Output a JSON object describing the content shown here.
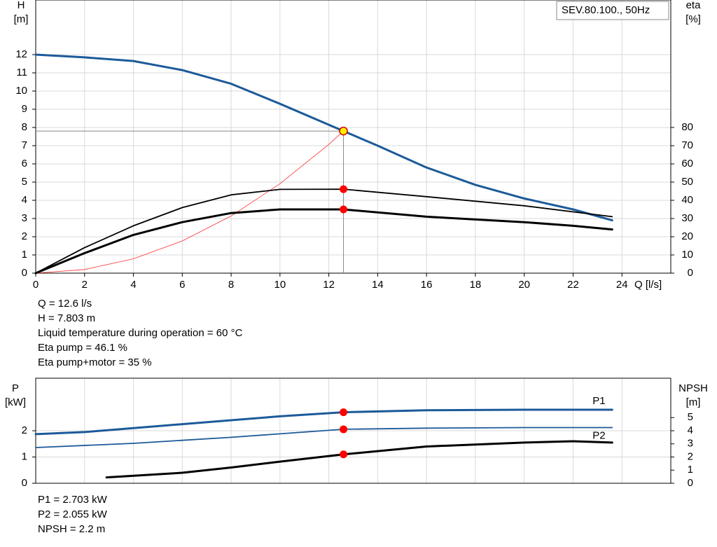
{
  "chart_data": [
    {
      "type": "line",
      "tag": "SEV.80.100., 50Hz",
      "ylabel": [
        "H",
        "[m]"
      ],
      "y2label": [
        "eta",
        "[%]"
      ],
      "xlabel": "Q [l/s]",
      "xlim": [
        0,
        26
      ],
      "xticks": [
        0,
        2,
        4,
        6,
        8,
        10,
        12,
        14,
        16,
        18,
        20,
        22,
        24
      ],
      "ylim": [
        0,
        15
      ],
      "yticks": [
        0,
        1,
        2,
        3,
        4,
        5,
        6,
        7,
        8,
        9,
        10,
        11,
        12
      ],
      "y2lim": [
        0,
        150
      ],
      "y2ticks": [
        0,
        10,
        20,
        30,
        40,
        50,
        60,
        70,
        80
      ],
      "grid": true,
      "op_x": 12.6,
      "crosshair": true,
      "series": [
        {
          "color": "#1c5a99",
          "width": 3,
          "x": [
            0,
            2,
            4,
            6,
            8,
            10,
            12.6,
            14,
            16,
            18,
            20,
            22,
            23.6
          ],
          "values": [
            12,
            11.85,
            11.65,
            11.15,
            10.4,
            9.3,
            7.803,
            7.0,
            5.8,
            4.85,
            4.1,
            3.5,
            2.9
          ],
          "point": 7.803,
          "point_color": "#ffee00"
        },
        {
          "color": "#ff3030",
          "width": 0.8,
          "x": [
            0,
            2,
            4,
            6,
            8,
            10,
            12,
            12.6
          ],
          "values": [
            0,
            0.2,
            0.79,
            1.77,
            3.14,
            4.91,
            7.07,
            7.803
          ]
        },
        {
          "color": "#000000",
          "width": 1.8,
          "axis": "y2",
          "x": [
            0,
            2,
            4,
            6,
            8,
            10,
            12.6,
            16,
            20,
            23.6
          ],
          "values": [
            0,
            14,
            26,
            36,
            43,
            46,
            46.1,
            42,
            37,
            31
          ],
          "point": 46.1,
          "point_color": "#ff0000"
        },
        {
          "color": "#000000",
          "width": 3,
          "axis": "y2",
          "x": [
            0,
            2,
            4,
            6,
            8,
            10,
            12.6,
            16,
            20,
            22,
            23.6
          ],
          "values": [
            0,
            11,
            21,
            28,
            33,
            35,
            35,
            31,
            28,
            26,
            24
          ],
          "point": 35,
          "point_color": "#ff0000"
        }
      ],
      "notes": [
        "Q = 12.6 l/s",
        "H = 7.803 m",
        "Liquid temperature during operation = 60 °C",
        "Eta pump = 46.1 %",
        "Eta pump+motor = 35 %"
      ]
    },
    {
      "type": "line",
      "ylabel": [
        "P",
        "[kW]"
      ],
      "y2label": [
        "NPSH",
        "[m]"
      ],
      "xlim": [
        0,
        26
      ],
      "ylim": [
        0,
        4
      ],
      "yticks": [
        0,
        1,
        2
      ],
      "y2lim": [
        0,
        8
      ],
      "y2ticks": [
        0,
        1,
        2,
        3,
        4,
        5
      ],
      "grid": true,
      "op_x": 12.6,
      "series": [
        {
          "name": "P1",
          "color": "#1c5a99",
          "width": 3,
          "x": [
            0,
            2,
            4,
            6,
            8,
            10,
            12.6,
            16,
            20,
            23.6
          ],
          "values": [
            1.87,
            1.95,
            2.1,
            2.25,
            2.4,
            2.55,
            2.703,
            2.78,
            2.8,
            2.8
          ],
          "point": 2.703,
          "point_color": "#ff0000"
        },
        {
          "name": "P2",
          "color": "#1c5a99",
          "width": 1.8,
          "x": [
            0,
            4,
            8,
            12.6,
            16,
            20,
            23.6
          ],
          "values": [
            1.36,
            1.52,
            1.75,
            2.055,
            2.1,
            2.12,
            2.12
          ],
          "point": 2.055,
          "point_color": "#ff0000"
        },
        {
          "color": "#000000",
          "width": 3,
          "axis": "y2",
          "x": [
            2.9,
            6,
            8,
            10,
            12.6,
            16,
            20,
            22,
            23.6
          ],
          "values": [
            0.45,
            0.8,
            1.2,
            1.65,
            2.2,
            2.8,
            3.1,
            3.2,
            3.1
          ],
          "point": 2.2,
          "point_color": "#ff0000"
        }
      ],
      "notes": [
        "P1 = 2.703 kW",
        "P2 = 2.055 kW",
        "NPSH = 2.2 m"
      ]
    }
  ]
}
